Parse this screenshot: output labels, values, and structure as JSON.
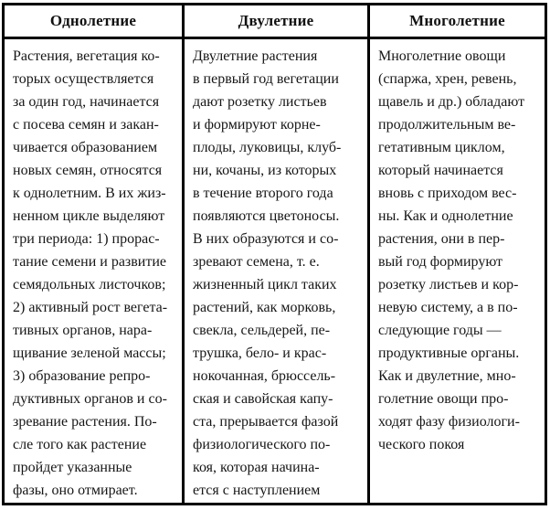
{
  "table": {
    "colors": {
      "border": "#000000",
      "text": "#161616",
      "background": "#ffffff"
    },
    "columns": [
      {
        "header": "Однолетние",
        "body": "Растения, вегетация ко-\nторых осуществляется\nза один год, начинается\nс посева семян и закан-\nчивается образованием\nновых семян, относятся\nк однолетним. В их жиз-\nненном цикле выделяют\nтри периода: 1) прорас-\nтание семени и развитие\nсемядольных листочков;\n2) активный рост вегета-\nтивных органов, нара-\nщивание зеленой массы;\n3) образование репро-\nдуктивных органов и со-\nзревание растения. По-\nсле того как растение\nпройдет указанные\nфазы, оно отмирает."
      },
      {
        "header": "Двулетние",
        "body": "Двулетние растения\nв первый год вегетации\nдают розетку листьев\nи формируют корне-\nплоды, луковицы, клуб-\nни, кочаны, из которых\nв течение второго года\nпоявляются цветоносы.\nВ них образуются и со-\nзревают семена, т. е.\nжизненный цикл таких\nрастений, как морковь,\nсвекла, сельдерей, пе-\nтрушка, бело- и крас-\nнокочанная, брюссель-\nская и савойская капу-\nста, прерывается фазой\nфизиологического по-\nкоя, которая начина-\nется с наступлением"
      },
      {
        "header": "Многолетние",
        "body": "Многолетние овощи\n(спаржа, хрен, ревень,\nщавель и др.) обладают\nпродолжительным ве-\nгетативным циклом,\nкоторый начинается\nвновь с приходом вес-\nны. Как и однолетние\nрастения, они в пер-\nвый год формируют\nрозетку листьев и кор-\nневую систему, а в по-\nследующие годы —\nпродуктивные органы.\nКак и двулетние, мно-\nголетние овощи про-\nходят фазу физиологи-\nческого покоя"
      }
    ]
  }
}
